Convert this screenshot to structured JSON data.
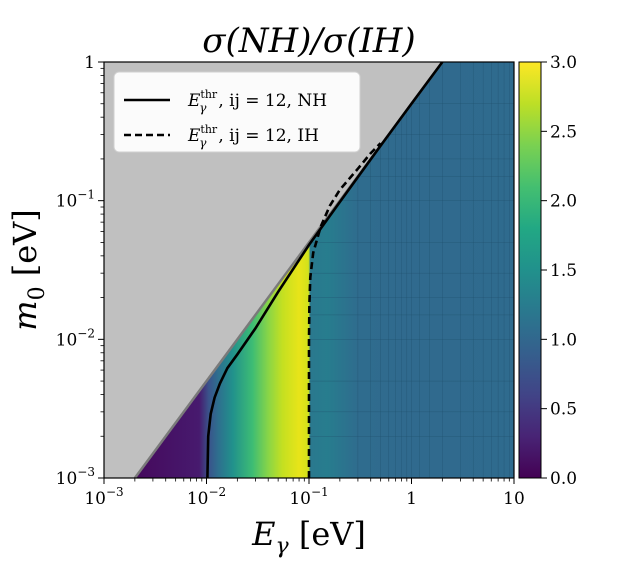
{
  "chart_data": {
    "type": "heatmap",
    "title": "σ(NH)/σ(IH)",
    "xlabel": "E_γ [eV]",
    "ylabel": "m_0 [eV]",
    "x_scale": "log",
    "y_scale": "log",
    "xlim": [
      0.001,
      10
    ],
    "ylim": [
      0.001,
      1
    ],
    "x_tick_labels": [
      "10^-3",
      "10^-2",
      "10^-1",
      "1",
      "10"
    ],
    "y_tick_labels": [
      "10^-3",
      "10^-2",
      "10^-1",
      "1"
    ],
    "colorbar": {
      "colormap": "viridis",
      "range": [
        0.0,
        3.0
      ],
      "tick_values": [
        0.0,
        0.5,
        1.0,
        1.5,
        2.0,
        2.5,
        3.0
      ],
      "tick_labels": [
        "0.0",
        "0.5",
        "1.0",
        "1.5",
        "2.0",
        "2.5",
        "3.0"
      ]
    },
    "forbidden_region_color": "#c0c0c0",
    "forbidden_boundary": "m_0 = E_γ / 2",
    "regions": [
      {
        "description_value": "ratio ≈ 0 (purple)",
        "E_gamma_range": [
          0.002,
          0.01
        ],
        "value": 0.1
      },
      {
        "description_value": "ratio rising teal→green",
        "E_gamma_range": [
          0.01,
          0.05
        ],
        "value": 1.8
      },
      {
        "description_value": "ratio ≈ 2.7–3.0 (yellow)",
        "E_gamma_range": [
          0.05,
          0.1
        ],
        "value": 2.8
      },
      {
        "description_value": "ratio ≈ 1.0 (blue)",
        "E_gamma_range": [
          0.1,
          10
        ],
        "value": 1.05
      }
    ],
    "series": [
      {
        "name": "E_γ^thr, ij = 12, NH",
        "style": "solid",
        "x": [
          0.0102,
          0.0104,
          0.011,
          0.012,
          0.0135,
          0.016,
          0.02,
          0.03,
          0.05,
          0.1,
          0.2,
          0.5,
          1,
          2
        ],
        "y": [
          0.001,
          0.002,
          0.0029,
          0.0038,
          0.0048,
          0.0062,
          0.0078,
          0.012,
          0.022,
          0.048,
          0.098,
          0.249,
          0.5,
          1.0
        ]
      },
      {
        "name": "E_γ^thr, ij = 12, IH",
        "style": "dashed",
        "x": [
          0.1,
          0.1,
          0.101,
          0.103,
          0.11,
          0.13,
          0.16,
          0.2,
          0.3,
          0.4,
          0.5
        ],
        "y": [
          0.001,
          0.01,
          0.018,
          0.028,
          0.042,
          0.065,
          0.092,
          0.12,
          0.17,
          0.22,
          0.26
        ]
      }
    ],
    "legend": {
      "placement": "upper-left",
      "entries": [
        {
          "base": "E",
          "sub": "γ",
          "sup": "thr",
          "rest": ", ij = 12, NH",
          "style": "solid"
        },
        {
          "base": "E",
          "sub": "γ",
          "sup": "thr",
          "rest": ", ij = 12, IH",
          "style": "dashed"
        }
      ]
    }
  }
}
